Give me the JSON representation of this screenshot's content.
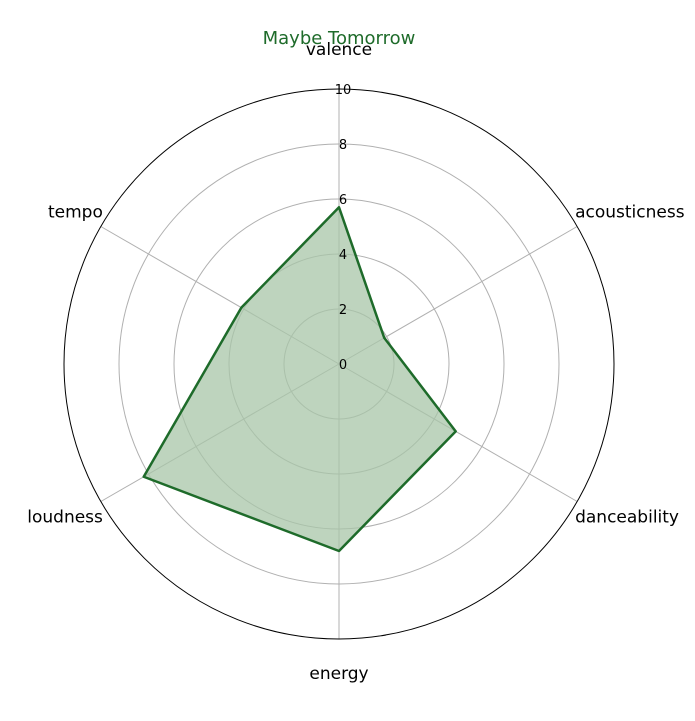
{
  "colors": {
    "line": "#1e6b2a",
    "fill": "#a8c5a8",
    "grid": "#b0b0b0",
    "outer": "#000000",
    "title": "#1e6b2a"
  },
  "chart_data": {
    "type": "radar",
    "title": "Maybe Tomorrow",
    "axes": [
      "valence",
      "acousticness",
      "danceability",
      "energy",
      "loudness",
      "tempo"
    ],
    "series": [
      {
        "values": [
          5.7,
          1.9,
          4.9,
          6.8,
          8.2,
          4.1
        ]
      }
    ],
    "rlim": [
      0,
      10
    ],
    "rticks": [
      "0",
      "2",
      "4",
      "6",
      "8",
      "10"
    ],
    "grid": true
  }
}
